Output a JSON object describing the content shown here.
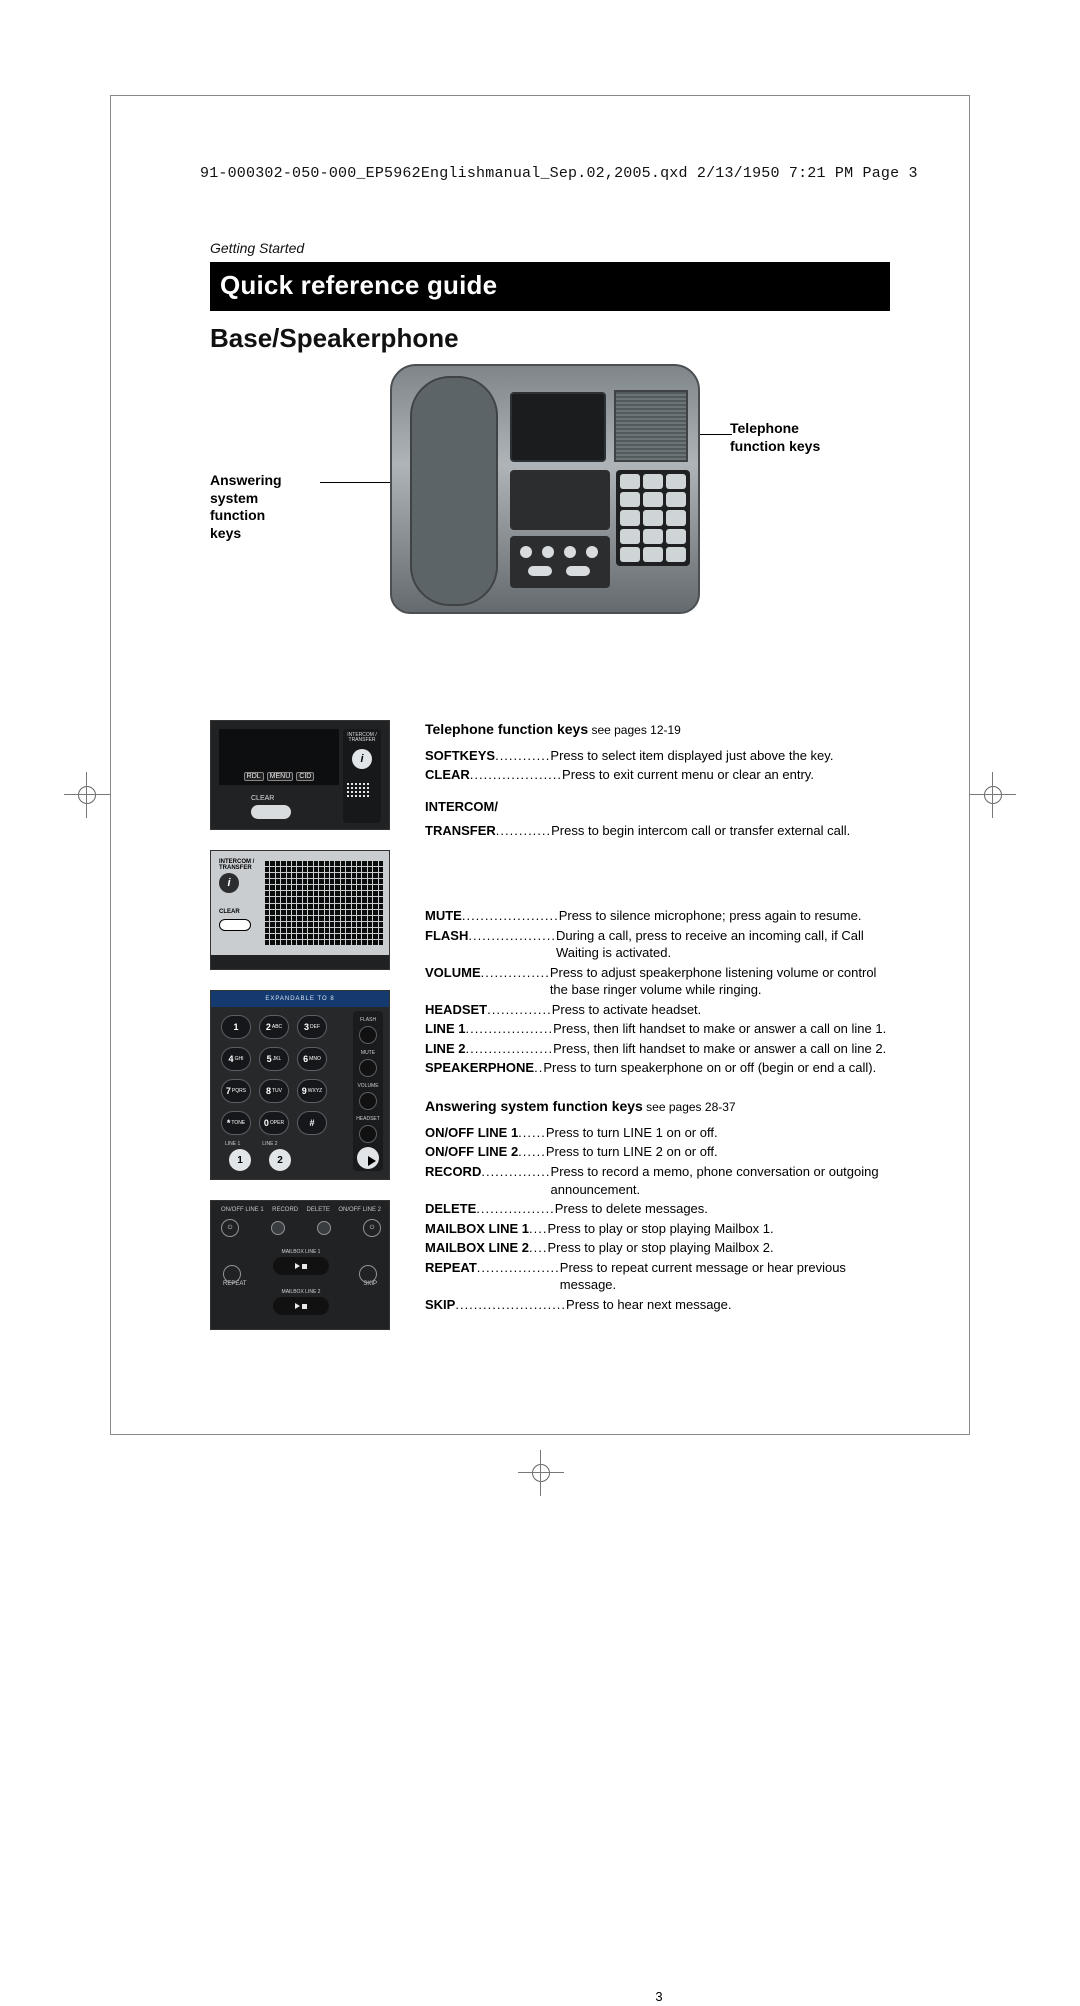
{
  "meta": {
    "header_line": "91-000302-050-000_EP5962Englishmanual_Sep.02,2005.qxd  2/13/1950  7:21 PM  Page 3"
  },
  "section_label": "Getting Started",
  "title_bar": "Quick reference guide",
  "subhead": "Base/Speakerphone",
  "callouts": {
    "left_line1": "Answering",
    "left_line2": "system",
    "left_line3": "function",
    "left_line4": "keys",
    "right_line1": "Telephone",
    "right_line2": "function keys"
  },
  "thumb_a": {
    "btn1": "RDL",
    "btn2": "MENU",
    "btn3": "CID",
    "label_intercom": "INTERCOM /",
    "label_transfer": "TRANSFER",
    "icon_i": "i",
    "label_clear": "CLEAR"
  },
  "thumb_b": {
    "label_intercom": "INTERCOM /",
    "label_transfer": "TRANSFER",
    "icon_i": "i",
    "label_clear": "CLEAR"
  },
  "thumb_c": {
    "bar_text": "EXPANDABLE TO 8",
    "keys": [
      "1",
      "2",
      "3",
      "4",
      "5",
      "6",
      "7",
      "8",
      "9",
      "*",
      "0",
      "#"
    ],
    "key_sub": [
      "",
      "ABC",
      "DEF",
      "GHI",
      "JKL",
      "MNO",
      "PQRS",
      "TUV",
      "WXYZ",
      "TONE",
      "OPER",
      ""
    ],
    "side_labels": [
      "FLASH",
      "MUTE",
      "VOLUME",
      "HEADSET"
    ],
    "line1": "1",
    "line2": "2",
    "linelbl1": "LINE 1",
    "linelbl2": "LINE 2"
  },
  "thumb_d": {
    "top_labels": [
      "ON/OFF LINE 1",
      "RECORD",
      "DELETE",
      "ON/OFF LINE 2"
    ],
    "mbox1": "MAILBOX LINE 1",
    "mbox2": "MAILBOX LINE 2",
    "repeat": "REPEAT",
    "skip": "SKIP",
    "pwr": "⏻"
  },
  "tel_section": {
    "heading": "Telephone function keys",
    "heading_suffix": " see pages 12-19",
    "rows1": [
      {
        "k": "SOFTKEYS",
        "d": " ............",
        "v": "Press to select item displayed just above the key."
      },
      {
        "k": "CLEAR",
        "d": "....................",
        "v": "Press to exit current menu or clear an entry."
      }
    ],
    "sub_intercom": "INTERCOM/",
    "rows2": [
      {
        "k": "TRANSFER",
        "d": " ............",
        "v": "Press to begin intercom call or transfer external call."
      }
    ],
    "rows3": [
      {
        "k": "MUTE",
        "d": " .....................",
        "v": "Press to silence microphone; press again to resume."
      },
      {
        "k": "FLASH",
        "d": " ...................",
        "v": "During a call, press to receive an incoming call, if Call Waiting is activated."
      },
      {
        "k": "VOLUME",
        "d": " ...............",
        "v": "Press to adjust speakerphone listening volume or control the base ringer volume while ringing."
      },
      {
        "k": "HEADSET",
        "d": " ..............",
        "v": "Press to activate headset."
      },
      {
        "k": "LINE 1",
        "d": " ...................",
        "v": "Press, then lift handset to make or answer a call on line 1."
      },
      {
        "k": "LINE 2",
        "d": " ...................",
        "v": "Press, then lift handset to make or answer a call on line 2."
      },
      {
        "k": "SPEAKERPHONE",
        "d": " ..",
        "v": "Press to turn speakerphone on or off (begin or end a call)."
      }
    ]
  },
  "ans_section": {
    "heading": "Answering system function keys",
    "heading_suffix": " see pages 28-37",
    "rows": [
      {
        "k": "ON/OFF LINE 1",
        "d": " ......",
        "v": "Press to turn LINE 1 on or off."
      },
      {
        "k": "ON/OFF LINE 2",
        "d": " ......",
        "v": "Press to turn LINE 2 on or off."
      },
      {
        "k": "RECORD",
        "d": " ...............",
        "v": "Press to record a memo, phone conversation or outgoing announcement."
      },
      {
        "k": "DELETE",
        "d": " .................",
        "v": "Press to delete messages."
      },
      {
        "k": "MAILBOX LINE 1",
        "d": "....",
        "v": "Press to play or stop playing Mailbox 1."
      },
      {
        "k": "MAILBOX LINE 2",
        "d": "....",
        "v": "Press to play or stop playing Mailbox 2."
      },
      {
        "k": "REPEAT",
        "d": "..................",
        "v": "Press to repeat current message or hear previous message."
      },
      {
        "k": "SKIP",
        "d": " ........................",
        "v": "Press to hear next message."
      }
    ]
  },
  "page_number": "3",
  "colors": {
    "titlebar_bg": "#000000",
    "titlebar_fg": "#ffffff",
    "phone_grad_top": "#7f868b",
    "phone_grad_mid": "#aeb4b8",
    "phone_grad_bot": "#646a6e",
    "thumb_dark": "#202224",
    "thumb_light": "#c9cdd0",
    "accent_blue": "#153a6f"
  }
}
